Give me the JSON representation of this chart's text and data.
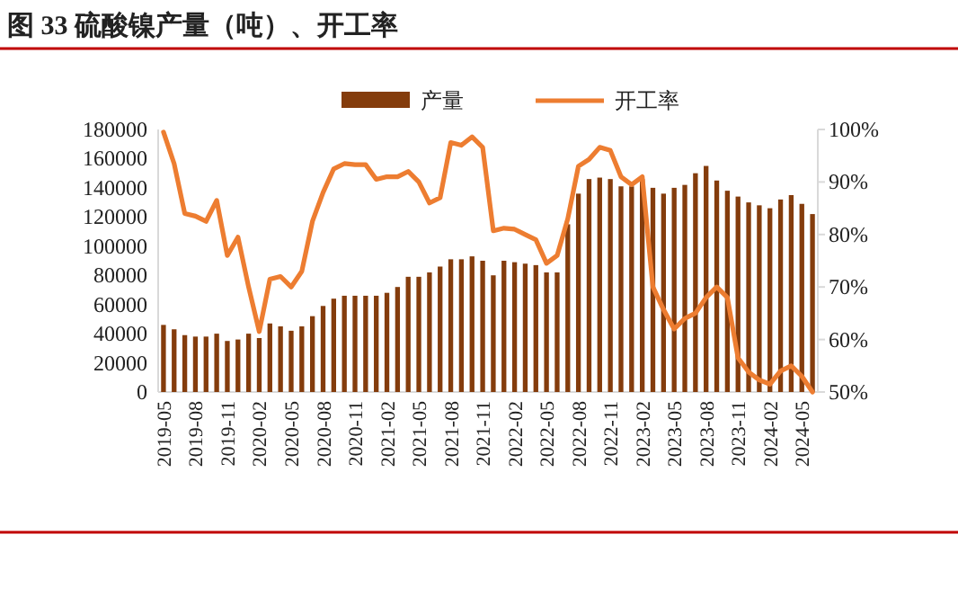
{
  "chart_data": {
    "type": "bar",
    "title": "图 33 硫酸镍产量（吨）、开工率",
    "categories": [
      "2019-05",
      null,
      null,
      "2019-08",
      null,
      null,
      "2019-11",
      null,
      null,
      "2020-02",
      null,
      null,
      "2020-05",
      null,
      null,
      "2020-08",
      null,
      null,
      "2020-11",
      null,
      null,
      "2021-02",
      null,
      null,
      "2021-05",
      null,
      null,
      "2021-08",
      null,
      null,
      "2021-11",
      null,
      null,
      "2022-02",
      null,
      null,
      "2022-05",
      null,
      null,
      "2022-08",
      null,
      null,
      "2022-11",
      null,
      null,
      "2023-02",
      null,
      null,
      "2023-05",
      null,
      null,
      "2023-08",
      null,
      null,
      "2023-11",
      null,
      null,
      "2024-02",
      null,
      null,
      "2024-05",
      null
    ],
    "series": [
      {
        "name": "产量",
        "color": "#843c0c",
        "values": [
          46000,
          43000,
          39000,
          38000,
          38000,
          40000,
          35000,
          36000,
          40000,
          37000,
          47000,
          45000,
          42000,
          45000,
          52000,
          59000,
          64000,
          66000,
          66000,
          66000,
          66000,
          68000,
          72000,
          79000,
          79000,
          82000,
          86000,
          91000,
          91000,
          93000,
          90000,
          80000,
          90000,
          89000,
          88000,
          87000,
          82000,
          82000,
          115000,
          136000,
          146000,
          147000,
          146000,
          141000,
          141000,
          146000,
          140000,
          136000,
          140000,
          142000,
          150000,
          155000,
          145000,
          138000,
          134000,
          130000,
          128000,
          126000,
          132000,
          135000,
          129000,
          122000
        ]
      },
      {
        "name": "开工率",
        "type": "line",
        "axis": "y2",
        "color": "#ed7d31",
        "values": [
          99.5,
          93.5,
          84,
          83.5,
          82.5,
          86.5,
          76,
          79.5,
          70,
          61.5,
          71.5,
          72,
          70,
          73,
          82.5,
          88,
          92.5,
          93.5,
          93.3,
          93.3,
          90.5,
          91,
          91,
          92,
          90,
          86,
          87,
          97.5,
          97,
          98.6,
          96.6,
          80.7,
          81.2,
          81,
          80,
          79,
          74.5,
          76,
          83,
          93,
          94.3,
          96.6,
          96,
          91,
          89.5,
          91,
          70,
          65.7,
          62,
          64,
          65,
          68,
          70,
          68,
          56.5,
          53.8,
          52.3,
          51.5,
          54,
          55,
          53,
          50
        ]
      }
    ],
    "ylim": [
      0,
      180000
    ],
    "yticks": [
      0,
      20000,
      40000,
      60000,
      80000,
      100000,
      120000,
      140000,
      160000,
      180000
    ],
    "y2lim": [
      50,
      100
    ],
    "y2ticks": [
      {
        "value": 50,
        "label": "50%"
      },
      {
        "value": 60,
        "label": "60%"
      },
      {
        "value": 70,
        "label": "70%"
      },
      {
        "value": 80,
        "label": "80%"
      },
      {
        "value": 90,
        "label": "90%"
      },
      {
        "value": 100,
        "label": "100%"
      }
    ],
    "legend": "top",
    "grid": false
  }
}
